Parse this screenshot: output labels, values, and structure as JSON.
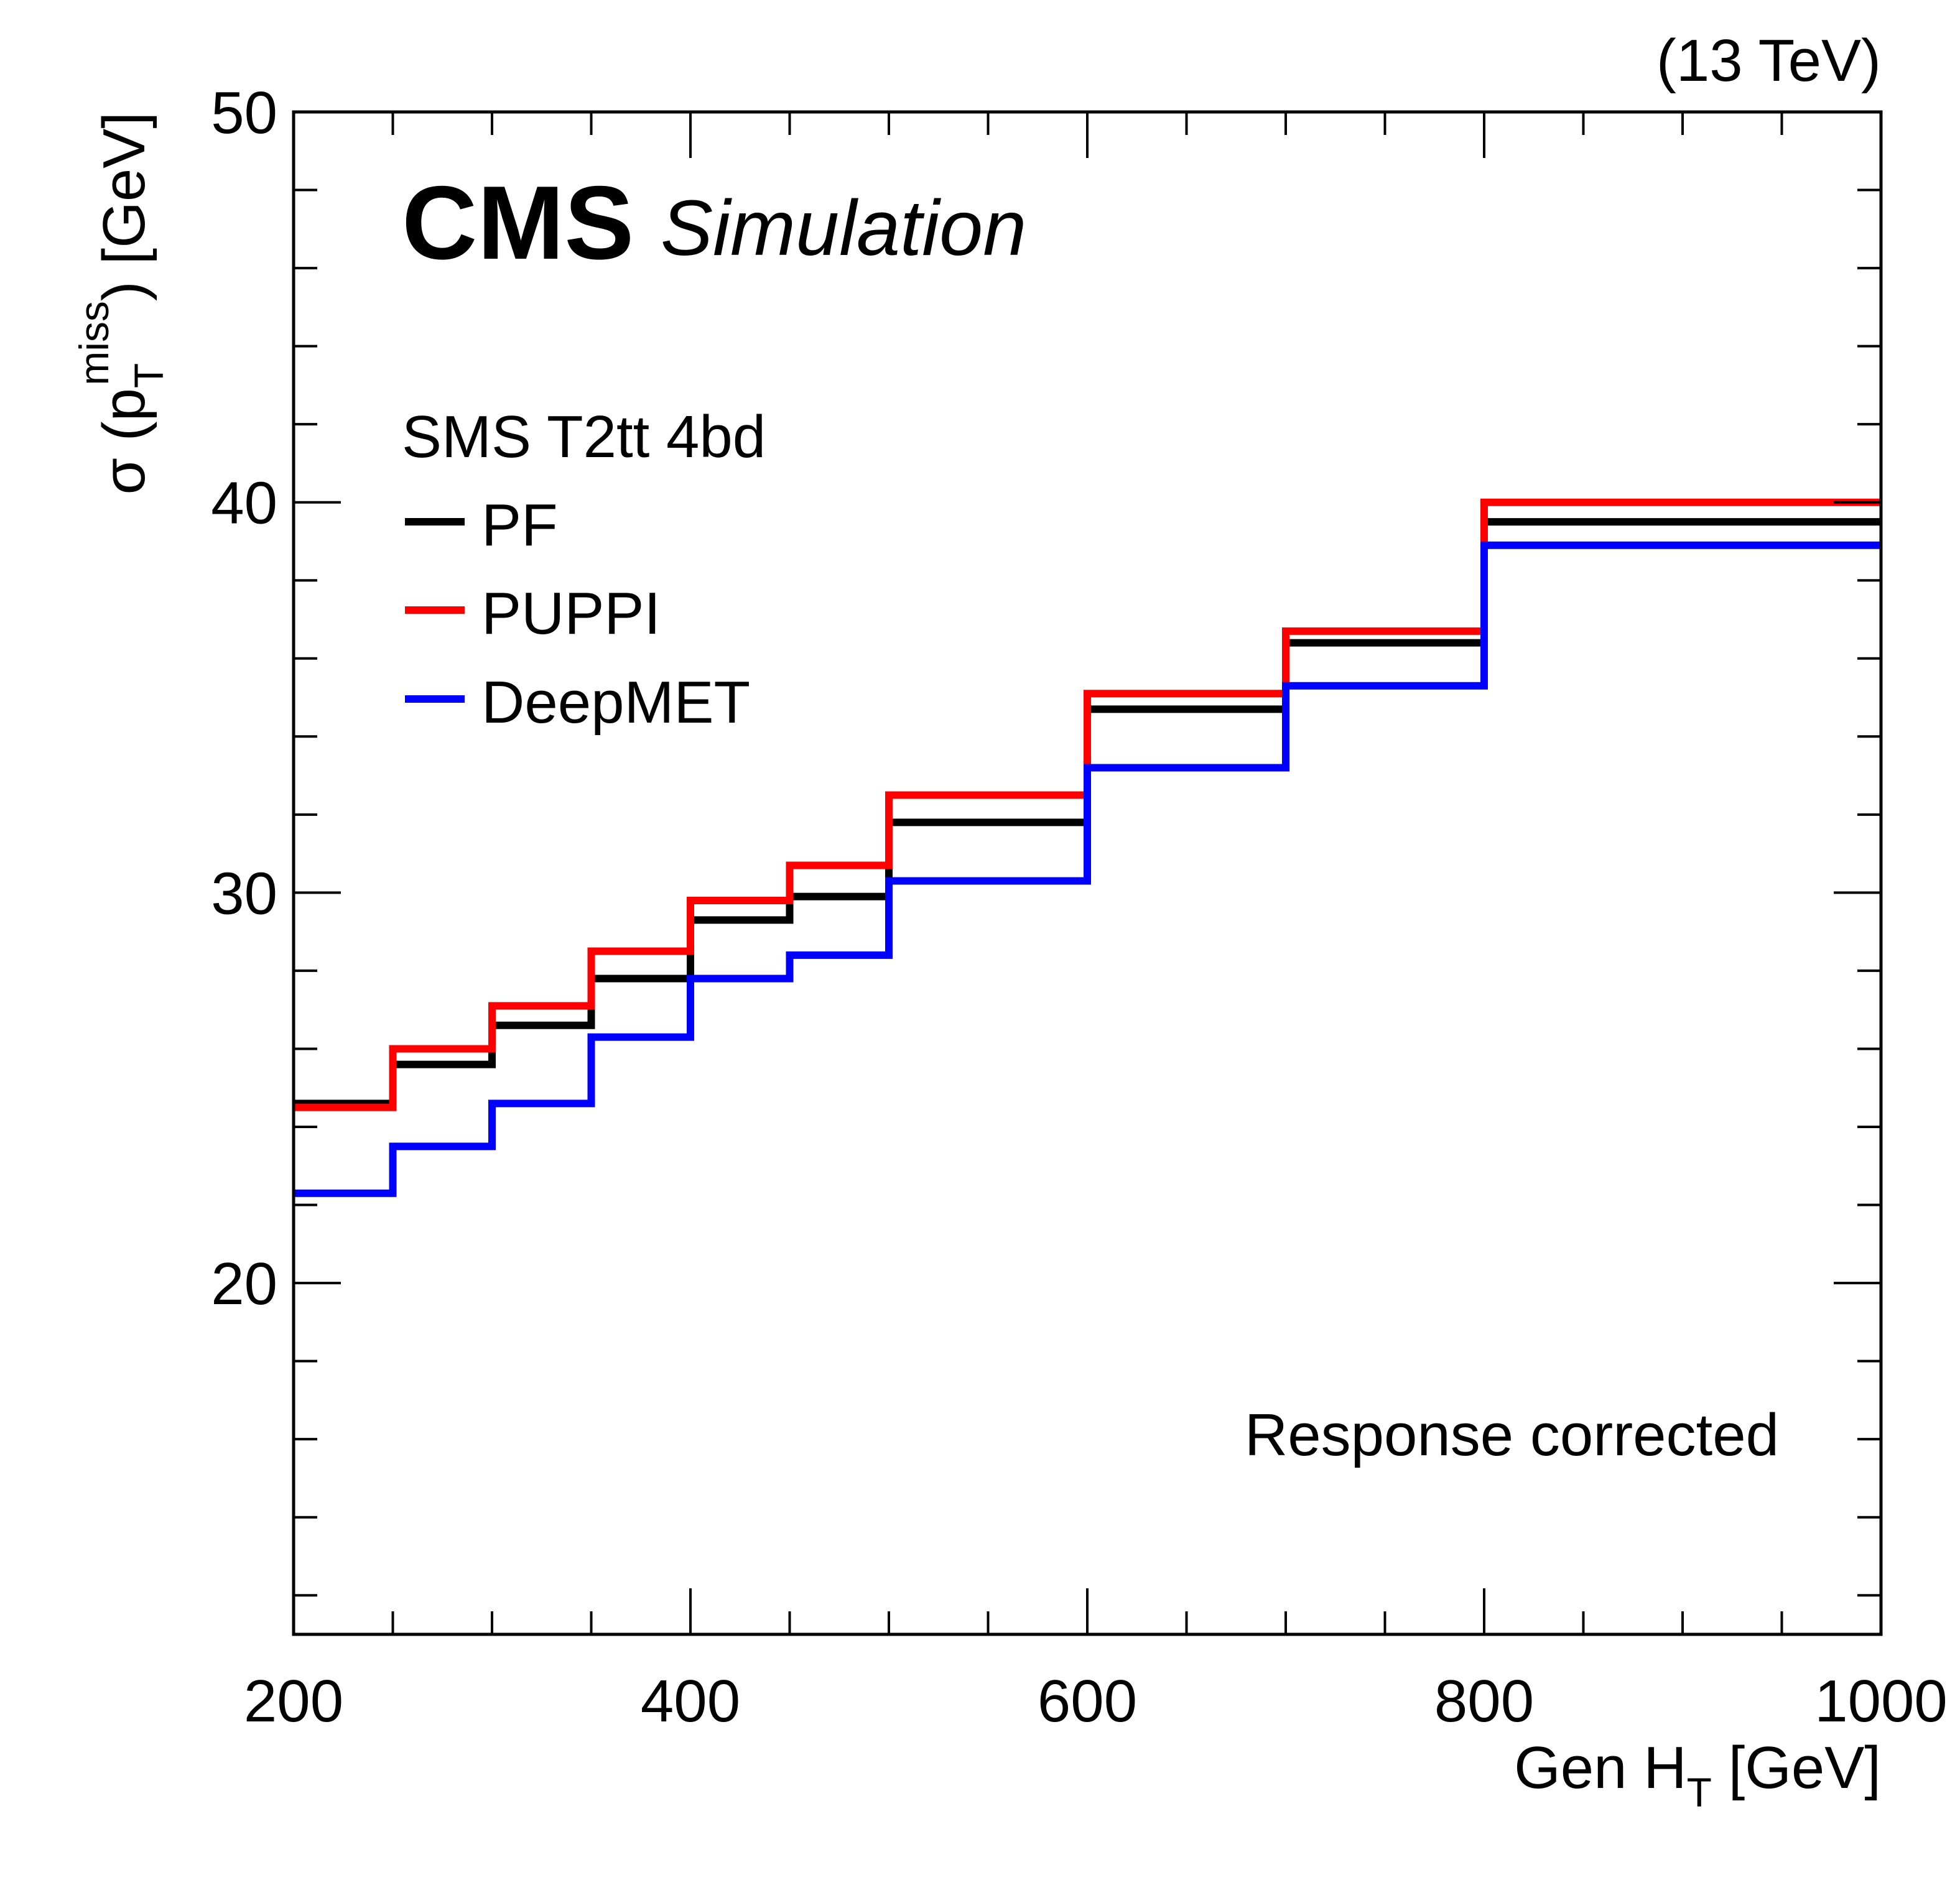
{
  "chart_data": {
    "type": "line",
    "style": "step-histogram",
    "title": "",
    "experiment_label": "CMS",
    "experiment_sublabel": "Simulation",
    "energy_label": "(13 TeV)",
    "xlabel": "Gen H",
    "xlabel_sub": "T",
    "xlabel_unit": " [GeV]",
    "ylabel": "σ (p",
    "ylabel_sub": "T",
    "ylabel_sup": "miss",
    "ylabel_unit": ") [GeV]",
    "xlim": [
      200,
      1000
    ],
    "ylim": [
      11,
      50
    ],
    "x_major_ticks": [
      200,
      400,
      600,
      800,
      1000
    ],
    "x_tick_labels": [
      "200",
      "400",
      "600",
      "800",
      "1000"
    ],
    "y_major_ticks": [
      20,
      30,
      40,
      50
    ],
    "y_tick_labels": [
      "20",
      "30",
      "40",
      "50"
    ],
    "grid": false,
    "legend_header": "SMS T2tt 4bd",
    "legend_position": "top-left",
    "annotation": "Response corrected",
    "bin_edges": [
      200,
      250,
      300,
      350,
      400,
      450,
      500,
      600,
      700,
      800,
      1000
    ],
    "series": [
      {
        "name": "PF",
        "color": "#000000",
        "values": [
          24.6,
          25.6,
          26.6,
          27.8,
          29.3,
          29.9,
          31.8,
          34.7,
          36.4,
          39.5
        ]
      },
      {
        "name": "PUPPI",
        "color": "#ff0000",
        "values": [
          24.5,
          26.0,
          27.1,
          28.5,
          29.8,
          30.7,
          32.5,
          35.1,
          36.7,
          40.0
        ]
      },
      {
        "name": "DeepMET",
        "color": "#0000ff",
        "values": [
          22.3,
          23.5,
          24.6,
          26.3,
          27.8,
          28.4,
          30.3,
          33.2,
          35.3,
          38.9
        ]
      }
    ]
  }
}
